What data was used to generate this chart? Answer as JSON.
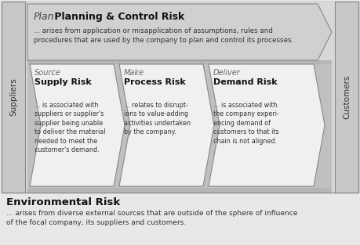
{
  "fig_bg": "#e8e8e8",
  "outer_bg": "#b5b5b5",
  "plan_bg": "#d0d0d0",
  "subrow_bg": "#c0c0c0",
  "cell_bg": "#f0f0f0",
  "sidebar_bg": "#c8c8c8",
  "env_bg": "#e8e8e8",
  "edge_color": "#888888",
  "plan_box": {
    "label_italic": "Plan",
    "label_bold": " Planning & Control Risk",
    "desc": "... arises from application or misapplication of assumptions, rules and\nprocedures that are used by the company to plan and control its processes."
  },
  "supply_box": {
    "label_italic": "Source",
    "label_bold": "Supply Risk",
    "desc": "... is associated with\nsuppliers or supplier's\nsupplier being unable\nto deliver the material\nneeded to meet the\ncustomer's demand."
  },
  "process_box": {
    "label_italic": "Make",
    "label_bold": "Process Risk",
    "desc": "... relates to disrupt-\nions to value-adding\nactivities undertaken\nby the company."
  },
  "demand_box": {
    "label_italic": "Deliver",
    "label_bold": "Demand Risk",
    "desc": "... is associated with\nthe company experi-\nencing demand of\ncustomers to that its\nchain is not aligned."
  },
  "env_title": "Environmental Risk",
  "env_desc": "... arises from diverse external sources that are outside of the sphere of influence\nof the focal company, its suppliers and customers.",
  "suppliers_label": "Suppliers",
  "customers_label": "Customers"
}
